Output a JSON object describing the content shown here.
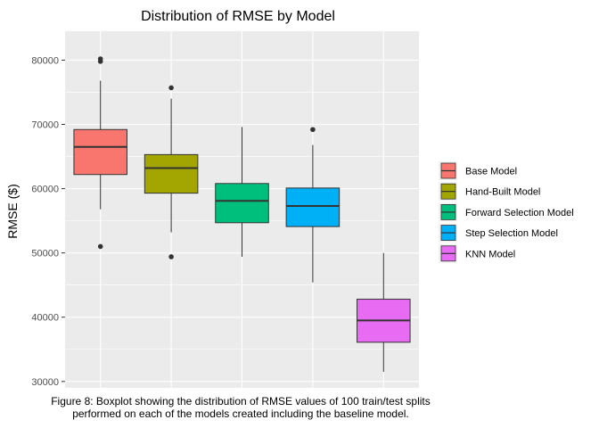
{
  "chart_data": {
    "type": "boxplot",
    "title": "Distribution of RMSE by Model",
    "xlabel": "",
    "ylabel": "RMSE ($)",
    "ylim": [
      29000,
      84500
    ],
    "yticks": [
      30000,
      40000,
      50000,
      60000,
      70000,
      80000
    ],
    "ytick_labels": [
      "30000",
      "40000",
      "50000",
      "60000",
      "70000",
      "80000"
    ],
    "grid": true,
    "legend_position": "right",
    "series": [
      {
        "name": "Base Model",
        "color": "#F8766D",
        "whisker_low": 56800,
        "q1": 62200,
        "median": 66500,
        "q3": 69200,
        "whisker_high": 76800,
        "outliers": [
          51000,
          79800,
          80200
        ]
      },
      {
        "name": "Hand-Built Model",
        "color": "#A3A500",
        "whisker_low": 53200,
        "q1": 59300,
        "median": 63200,
        "q3": 65300,
        "whisker_high": 74000,
        "outliers": [
          49400,
          75700
        ]
      },
      {
        "name": "Forward Selection Model",
        "color": "#00BF7D",
        "whisker_low": 49400,
        "q1": 54700,
        "median": 58100,
        "q3": 60800,
        "whisker_high": 69600,
        "outliers": []
      },
      {
        "name": "Step Selection Model",
        "color": "#00B0F6",
        "whisker_low": 45400,
        "q1": 54100,
        "median": 57300,
        "q3": 60100,
        "whisker_high": 66800,
        "outliers": [
          69200
        ]
      },
      {
        "name": "KNN Model",
        "color": "#E76BF3",
        "whisker_low": 31500,
        "q1": 36100,
        "median": 39500,
        "q3": 42800,
        "whisker_high": 50000,
        "outliers": []
      }
    ]
  },
  "caption": {
    "line1": "Figure 8: Boxplot showing the distribution of RMSE values of 100 train/test splits",
    "line2": "performed on each of the models created including the baseline model."
  }
}
